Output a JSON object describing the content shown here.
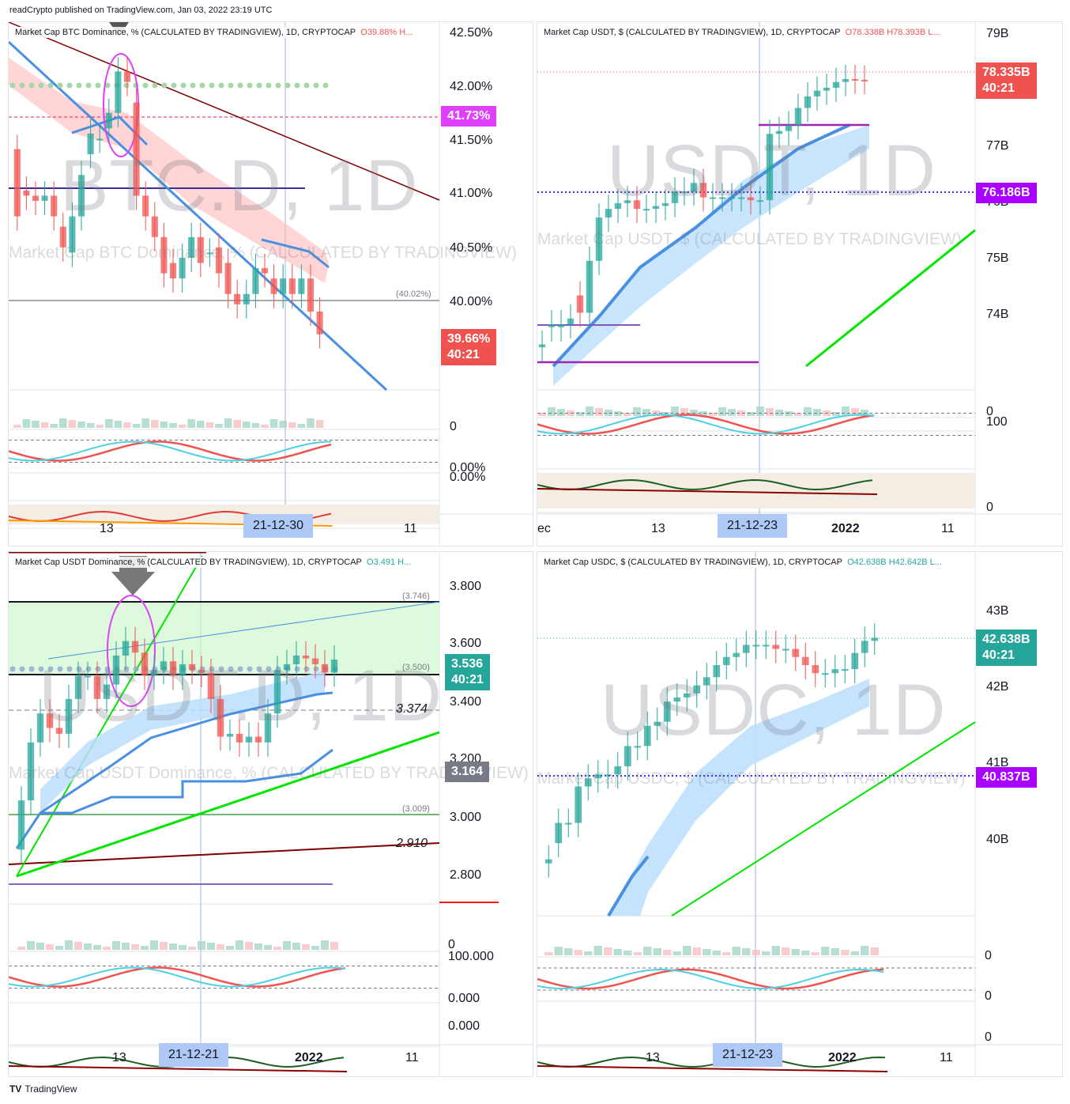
{
  "header": {
    "published": "readCrypto published on TradingView.com, Jan 03, 2022 23:19 UTC"
  },
  "footer": {
    "brand": "TradingView",
    "logo": "TV"
  },
  "colors": {
    "up": "#26a69a",
    "down": "#ef5350",
    "purple": "#9c27b0",
    "blue_line": "#4a90e2",
    "green_line": "#00e600",
    "maroon_line": "#800000",
    "magenta": "#e91e63",
    "highlight_band": "#ffb3b3"
  },
  "panels": [
    {
      "id": "btc_d",
      "title": "Market Cap BTC Dominance, % (CALCULATED BY TRADINGVIEW), 1D, CRYPTOCAP",
      "ohlc": "O39.88%  H...",
      "watermark": "BTC.D, 1D",
      "watermark_sub": "Market Cap BTC Dominance, % (CALCULATED BY TRADINGVIEW)",
      "yticks": [
        "42.50%",
        "42.00%",
        "41.50%",
        "41.00%",
        "40.50%",
        "40.00%"
      ],
      "badges": [
        {
          "text": "41.73%",
          "sub": "",
          "color": "#e040fb"
        },
        {
          "text": "39.66%",
          "sub": "40:21",
          "color": "#ef5350"
        }
      ],
      "level_label": "(40.02%)",
      "sub_labels": [
        "0",
        "0.00%",
        "0.00%"
      ],
      "xticks": [
        "13",
        "21-12-30",
        "11"
      ]
    },
    {
      "id": "usdt_cap",
      "title": "Market Cap USDT, $ (CALCULATED BY TRADINGVIEW), 1D, CRYPTOCAP",
      "ohlc": "O78.338B  H78.393B  L...",
      "watermark": "USDT, 1D",
      "watermark_sub": "Market Cap USDT, $ (CALCULATED BY TRADINGVIEW)",
      "yticks": [
        "79B",
        "77B",
        "76B",
        "75B",
        "74B"
      ],
      "badges": [
        {
          "text": "78.335B",
          "sub": "40:21",
          "color": "#ef5350"
        },
        {
          "text": "76.186B",
          "sub": "",
          "color": "#aa00ff"
        }
      ],
      "sub_labels": [
        "0",
        "100",
        "0"
      ],
      "xticks": [
        "ec",
        "13",
        "21-12-23",
        "2022",
        "11"
      ]
    },
    {
      "id": "usdt_d",
      "title": "Market Cap USDT Dominance, % (CALCULATED BY TRADINGVIEW), 1D, CRYPTOCAP",
      "ohlc": "O3.491  H...",
      "watermark": "USDT.D, 1D",
      "watermark_sub": "Market Cap USDT Dominance, % (CALCULATED BY TRADINGVIEW)",
      "yticks": [
        "3.800",
        "3.600",
        "3.400",
        "3.200",
        "3.000",
        "2.800"
      ],
      "badges": [
        {
          "text": "3.536",
          "sub": "40:21",
          "color": "#26a69a"
        },
        {
          "text": "3.164",
          "sub": "",
          "color": "#787b86"
        }
      ],
      "levels": [
        "(3.746)",
        "(3.500)",
        "3.374",
        "(3.009)",
        "2.910"
      ],
      "sub_labels": [
        "0",
        "100.000",
        "0.000",
        "0.000"
      ],
      "xticks": [
        "13",
        "21-12-21",
        "2022",
        "11"
      ]
    },
    {
      "id": "usdc_cap",
      "title": "Market Cap USDC, $ (CALCULATED BY TRADINGVIEW), 1D, CRYPTOCAP",
      "ohlc": "O42.638B  H42.642B  L...",
      "watermark": "USDC, 1D",
      "watermark_sub": "Market Cap USDC, $ (CALCULATED BY TRADINGVIEW)",
      "yticks": [
        "43B",
        "42B",
        "41B",
        "40B"
      ],
      "badges": [
        {
          "text": "42.638B",
          "sub": "40:21",
          "color": "#26a69a"
        },
        {
          "text": "40.837B",
          "sub": "",
          "color": "#aa00ff"
        }
      ],
      "sub_labels": [
        "0",
        "0",
        "0"
      ],
      "xticks": [
        "13",
        "21-12-23",
        "2022",
        "11"
      ]
    }
  ],
  "chart_data": [
    {
      "type": "candlestick",
      "title": "Market Cap BTC Dominance, % (CALCULATED BY TRADINGVIEW), 1D, CRYPTOCAP",
      "x": [
        "21-12-01",
        "21-12-02",
        "21-12-03",
        "21-12-04",
        "21-12-05",
        "21-12-06",
        "21-12-07",
        "21-12-08",
        "21-12-09",
        "21-12-10",
        "21-12-11",
        "21-12-12",
        "21-12-13",
        "21-12-14",
        "21-12-15",
        "21-12-16",
        "21-12-17",
        "21-12-18",
        "21-12-19",
        "21-12-20",
        "21-12-21",
        "21-12-22",
        "21-12-23",
        "21-12-24",
        "21-12-25",
        "21-12-26",
        "21-12-27",
        "21-12-28",
        "21-12-29",
        "21-12-30",
        "21-12-31",
        "22-01-01",
        "22-01-02",
        "22-01-03"
      ],
      "open": [
        41.45,
        41.05,
        41.0,
        40.95,
        41.0,
        40.7,
        40.45,
        40.8,
        41.4,
        41.55,
        41.65,
        41.8,
        42.2,
        41.9,
        41.0,
        40.8,
        40.6,
        40.35,
        40.2,
        40.4,
        40.6,
        40.45,
        40.5,
        40.35,
        40.05,
        39.95,
        40.05,
        40.3,
        40.2,
        40.05,
        40.2,
        40.05,
        40.2,
        39.88
      ],
      "close": [
        40.8,
        41.0,
        40.95,
        41.0,
        40.8,
        40.5,
        40.8,
        41.2,
        41.6,
        41.55,
        41.8,
        42.2,
        42.1,
        41.0,
        40.8,
        40.6,
        40.25,
        40.2,
        40.4,
        40.6,
        40.35,
        40.45,
        40.25,
        40.05,
        39.95,
        40.05,
        40.3,
        40.25,
        40.05,
        40.2,
        40.05,
        40.2,
        39.88,
        39.66
      ],
      "ylim": [
        39.2,
        42.6
      ]
    },
    {
      "type": "candlestick",
      "title": "Market Cap USDT, $ (CALCULATED BY TRADINGVIEW), 1D, CRYPTOCAP",
      "x": [
        "21-11-30",
        "21-12-01",
        "21-12-02",
        "21-12-03",
        "21-12-04",
        "21-12-05",
        "21-12-06",
        "21-12-07",
        "21-12-08",
        "21-12-09",
        "21-12-10",
        "21-12-11",
        "21-12-12",
        "21-12-13",
        "21-12-14",
        "21-12-15",
        "21-12-16",
        "21-12-17",
        "21-12-18",
        "21-12-19",
        "21-12-20",
        "21-12-21",
        "21-12-22",
        "21-12-23",
        "21-12-24",
        "21-12-25",
        "21-12-26",
        "21-12-27",
        "21-12-28",
        "21-12-29",
        "21-12-30",
        "21-12-31",
        "22-01-01",
        "22-01-02",
        "22-01-03"
      ],
      "open": [
        73.7,
        74.05,
        74.05,
        74.1,
        74.6,
        74.3,
        75.2,
        75.95,
        76.1,
        76.2,
        76.25,
        76.1,
        76.1,
        76.15,
        76.2,
        76.4,
        76.4,
        76.55,
        76.3,
        76.3,
        76.3,
        76.3,
        76.3,
        76.25,
        76.25,
        77.4,
        77.45,
        77.55,
        77.85,
        78.05,
        78.15,
        78.2,
        78.3,
        78.35,
        78.338
      ],
      "close": [
        73.75,
        74.1,
        74.1,
        74.2,
        74.3,
        75.2,
        75.95,
        76.1,
        76.2,
        76.25,
        76.1,
        76.1,
        76.15,
        76.2,
        76.4,
        76.4,
        76.55,
        76.3,
        76.3,
        76.3,
        76.3,
        76.3,
        76.25,
        76.25,
        77.4,
        77.45,
        77.55,
        77.85,
        78.05,
        78.15,
        78.2,
        78.3,
        78.35,
        78.338,
        78.335
      ],
      "ylim": [
        73.1,
        79.2
      ]
    },
    {
      "type": "candlestick",
      "title": "Market Cap USDT Dominance, % (CALCULATED BY TRADINGVIEW), 1D, CRYPTOCAP",
      "x": [
        "21-12-01",
        "21-12-02",
        "21-12-03",
        "21-12-04",
        "21-12-05",
        "21-12-06",
        "21-12-07",
        "21-12-08",
        "21-12-09",
        "21-12-10",
        "21-12-11",
        "21-12-12",
        "21-12-13",
        "21-12-14",
        "21-12-15",
        "21-12-16",
        "21-12-17",
        "21-12-18",
        "21-12-19",
        "21-12-20",
        "21-12-21",
        "21-12-22",
        "21-12-23",
        "21-12-24",
        "21-12-25",
        "21-12-26",
        "21-12-27",
        "21-12-28",
        "21-12-29",
        "21-12-30",
        "21-12-31",
        "22-01-01",
        "22-01-02",
        "22-01-03"
      ],
      "open": [
        2.88,
        3.05,
        3.25,
        3.35,
        3.3,
        3.28,
        3.4,
        3.48,
        3.48,
        3.4,
        3.45,
        3.55,
        3.6,
        3.56,
        3.48,
        3.5,
        3.53,
        3.48,
        3.52,
        3.5,
        3.49,
        3.4,
        3.27,
        3.28,
        3.25,
        3.27,
        3.25,
        3.35,
        3.5,
        3.52,
        3.55,
        3.54,
        3.52,
        3.491
      ],
      "close": [
        3.05,
        3.25,
        3.35,
        3.3,
        3.28,
        3.4,
        3.48,
        3.48,
        3.4,
        3.45,
        3.55,
        3.6,
        3.56,
        3.48,
        3.5,
        3.53,
        3.48,
        3.52,
        3.5,
        3.49,
        3.4,
        3.27,
        3.28,
        3.25,
        3.27,
        3.25,
        3.35,
        3.5,
        3.52,
        3.55,
        3.54,
        3.52,
        3.491,
        3.536
      ],
      "ylim": [
        2.72,
        3.88
      ]
    },
    {
      "type": "candlestick",
      "title": "Market Cap USDC, $ (CALCULATED BY TRADINGVIEW), 1D, CRYPTOCAP",
      "x": [
        "21-12-01",
        "21-12-02",
        "21-12-03",
        "21-12-04",
        "21-12-05",
        "21-12-06",
        "21-12-07",
        "21-12-08",
        "21-12-09",
        "21-12-10",
        "21-12-11",
        "21-12-12",
        "21-12-13",
        "21-12-14",
        "21-12-15",
        "21-12-16",
        "21-12-17",
        "21-12-18",
        "21-12-19",
        "21-12-20",
        "21-12-21",
        "21-12-22",
        "21-12-23",
        "21-12-24",
        "21-12-25",
        "21-12-26",
        "21-12-27",
        "21-12-28",
        "21-12-29",
        "21-12-30",
        "21-12-31",
        "22-01-01",
        "22-01-02",
        "22-01-03"
      ],
      "open": [
        39.85,
        40.1,
        40.35,
        40.35,
        40.8,
        40.9,
        40.95,
        40.95,
        41.05,
        41.3,
        41.3,
        41.55,
        41.6,
        41.85,
        41.9,
        41.95,
        42.05,
        42.15,
        42.3,
        42.4,
        42.45,
        42.55,
        42.55,
        42.55,
        42.5,
        42.5,
        42.4,
        42.3,
        42.2,
        42.2,
        42.25,
        42.25,
        42.45,
        42.6
      ],
      "close": [
        39.9,
        40.35,
        40.35,
        40.8,
        40.9,
        40.95,
        40.95,
        41.05,
        41.3,
        41.3,
        41.55,
        41.6,
        41.85,
        41.9,
        41.95,
        42.05,
        42.15,
        42.3,
        42.4,
        42.45,
        42.55,
        42.55,
        42.55,
        42.5,
        42.5,
        42.4,
        42.3,
        42.2,
        42.2,
        42.25,
        42.25,
        42.45,
        42.6,
        42.638
      ],
      "ylim": [
        39.3,
        43.6
      ]
    }
  ]
}
